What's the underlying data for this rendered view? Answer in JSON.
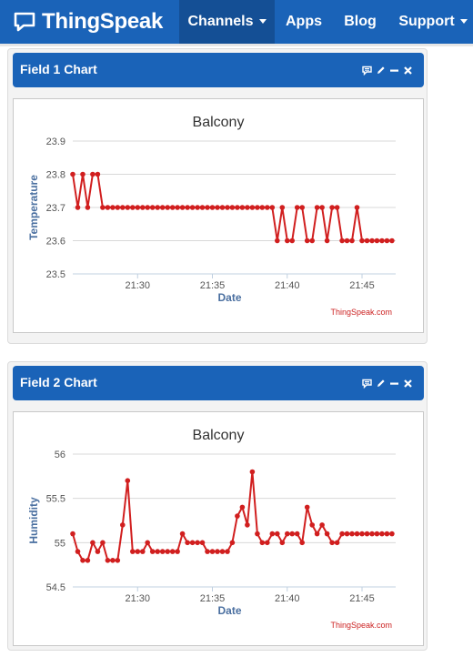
{
  "app": {
    "brand": "ThingSpeak",
    "logo_icon": "speech-bubble-icon"
  },
  "nav": {
    "items": [
      {
        "label": "Channels",
        "dropdown": true,
        "active": true
      },
      {
        "label": "Apps",
        "dropdown": false,
        "active": false
      },
      {
        "label": "Blog",
        "dropdown": false,
        "active": false
      },
      {
        "label": "Support",
        "dropdown": true,
        "active": false
      }
    ]
  },
  "colors": {
    "nav": "#1a63b8",
    "nav_active": "#144f95",
    "series": "#d11f1f",
    "axis_text": "#4a6fa0",
    "credit": "#cc2222"
  },
  "panels": [
    {
      "title": "Field 1 Chart",
      "tools": [
        "comment-icon",
        "pencil-icon",
        "minimize-icon",
        "close-icon"
      ]
    },
    {
      "title": "Field 2 Chart",
      "tools": [
        "comment-icon",
        "pencil-icon",
        "minimize-icon",
        "close-icon"
      ]
    }
  ],
  "chart_data": [
    {
      "type": "line",
      "title": "Balcony",
      "xlabel": "Date",
      "ylabel": "Temperature",
      "ylim": [
        23.5,
        23.9
      ],
      "yticks": [
        "23.5",
        "23.6",
        "23.7",
        "23.8",
        "23.9"
      ],
      "xlim": [
        "21:25:40",
        "21:47:15"
      ],
      "xticks": [
        "21:30",
        "21:35",
        "21:40",
        "21:45"
      ],
      "grid": true,
      "credit": "ThingSpeak.com",
      "series": [
        {
          "x": [
            "21:25:40",
            "21:26:00",
            "21:26:20",
            "21:26:40",
            "21:27:00",
            "21:27:20",
            "21:27:40",
            "21:28:00",
            "21:28:20",
            "21:28:40",
            "21:29:00",
            "21:29:20",
            "21:29:40",
            "21:30:00",
            "21:30:20",
            "21:30:40",
            "21:31:00",
            "21:31:20",
            "21:31:40",
            "21:32:00",
            "21:32:20",
            "21:32:40",
            "21:33:00",
            "21:33:20",
            "21:33:40",
            "21:34:00",
            "21:34:20",
            "21:34:40",
            "21:35:00",
            "21:35:20",
            "21:35:40",
            "21:36:00",
            "21:36:20",
            "21:36:40",
            "21:37:00",
            "21:37:20",
            "21:37:40",
            "21:38:00",
            "21:38:20",
            "21:38:40",
            "21:39:00",
            "21:39:20",
            "21:39:40",
            "21:40:00",
            "21:40:20",
            "21:40:40",
            "21:41:00",
            "21:41:20",
            "21:41:40",
            "21:42:00",
            "21:42:20",
            "21:42:40",
            "21:43:00",
            "21:43:20",
            "21:43:40",
            "21:44:00",
            "21:44:20",
            "21:44:40",
            "21:45:00",
            "21:45:20",
            "21:45:40",
            "21:46:00",
            "21:46:20",
            "21:46:40",
            "21:47:00"
          ],
          "values": [
            23.8,
            23.7,
            23.8,
            23.7,
            23.8,
            23.8,
            23.7,
            23.7,
            23.7,
            23.7,
            23.7,
            23.7,
            23.7,
            23.7,
            23.7,
            23.7,
            23.7,
            23.7,
            23.7,
            23.7,
            23.7,
            23.7,
            23.7,
            23.7,
            23.7,
            23.7,
            23.7,
            23.7,
            23.7,
            23.7,
            23.7,
            23.7,
            23.7,
            23.7,
            23.7,
            23.7,
            23.7,
            23.7,
            23.7,
            23.7,
            23.7,
            23.6,
            23.7,
            23.6,
            23.6,
            23.7,
            23.7,
            23.6,
            23.6,
            23.7,
            23.7,
            23.6,
            23.7,
            23.7,
            23.6,
            23.6,
            23.6,
            23.7,
            23.6,
            23.6,
            23.6,
            23.6,
            23.6,
            23.6,
            23.6
          ]
        }
      ]
    },
    {
      "type": "line",
      "title": "Balcony",
      "xlabel": "Date",
      "ylabel": "Humidity",
      "ylim": [
        54.5,
        56
      ],
      "yticks": [
        "54.5",
        "55",
        "55.5",
        "56"
      ],
      "xlim": [
        "21:25:40",
        "21:47:15"
      ],
      "xticks": [
        "21:30",
        "21:35",
        "21:40",
        "21:45"
      ],
      "grid": true,
      "credit": "ThingSpeak.com",
      "series": [
        {
          "x": [
            "21:25:40",
            "21:26:00",
            "21:26:20",
            "21:26:40",
            "21:27:00",
            "21:27:20",
            "21:27:40",
            "21:28:00",
            "21:28:20",
            "21:28:40",
            "21:29:00",
            "21:29:20",
            "21:29:40",
            "21:30:00",
            "21:30:20",
            "21:30:40",
            "21:31:00",
            "21:31:20",
            "21:31:40",
            "21:32:00",
            "21:32:20",
            "21:32:40",
            "21:33:00",
            "21:33:20",
            "21:33:40",
            "21:34:00",
            "21:34:20",
            "21:34:40",
            "21:35:00",
            "21:35:20",
            "21:35:40",
            "21:36:00",
            "21:36:20",
            "21:36:40",
            "21:37:00",
            "21:37:20",
            "21:37:40",
            "21:38:00",
            "21:38:20",
            "21:38:40",
            "21:39:00",
            "21:39:20",
            "21:39:40",
            "21:40:00",
            "21:40:20",
            "21:40:40",
            "21:41:00",
            "21:41:20",
            "21:41:40",
            "21:42:00",
            "21:42:20",
            "21:42:40",
            "21:43:00",
            "21:43:20",
            "21:43:40",
            "21:44:00",
            "21:44:20",
            "21:44:40",
            "21:45:00",
            "21:45:20",
            "21:45:40",
            "21:46:00",
            "21:46:20",
            "21:46:40",
            "21:47:00"
          ],
          "values": [
            55.1,
            54.9,
            54.8,
            54.8,
            55.0,
            54.9,
            55.0,
            54.8,
            54.8,
            54.8,
            55.2,
            55.7,
            54.9,
            54.9,
            54.9,
            55.0,
            54.9,
            54.9,
            54.9,
            54.9,
            54.9,
            54.9,
            55.1,
            55.0,
            55.0,
            55.0,
            55.0,
            54.9,
            54.9,
            54.9,
            54.9,
            54.9,
            55.0,
            55.3,
            55.4,
            55.2,
            55.8,
            55.1,
            55.0,
            55.0,
            55.1,
            55.1,
            55.0,
            55.1,
            55.1,
            55.1,
            55.0,
            55.4,
            55.2,
            55.1,
            55.2,
            55.1,
            55.0,
            55.0,
            55.1,
            55.1,
            55.1,
            55.1,
            55.1,
            55.1,
            55.1,
            55.1,
            55.1,
            55.1,
            55.1
          ]
        }
      ]
    }
  ]
}
